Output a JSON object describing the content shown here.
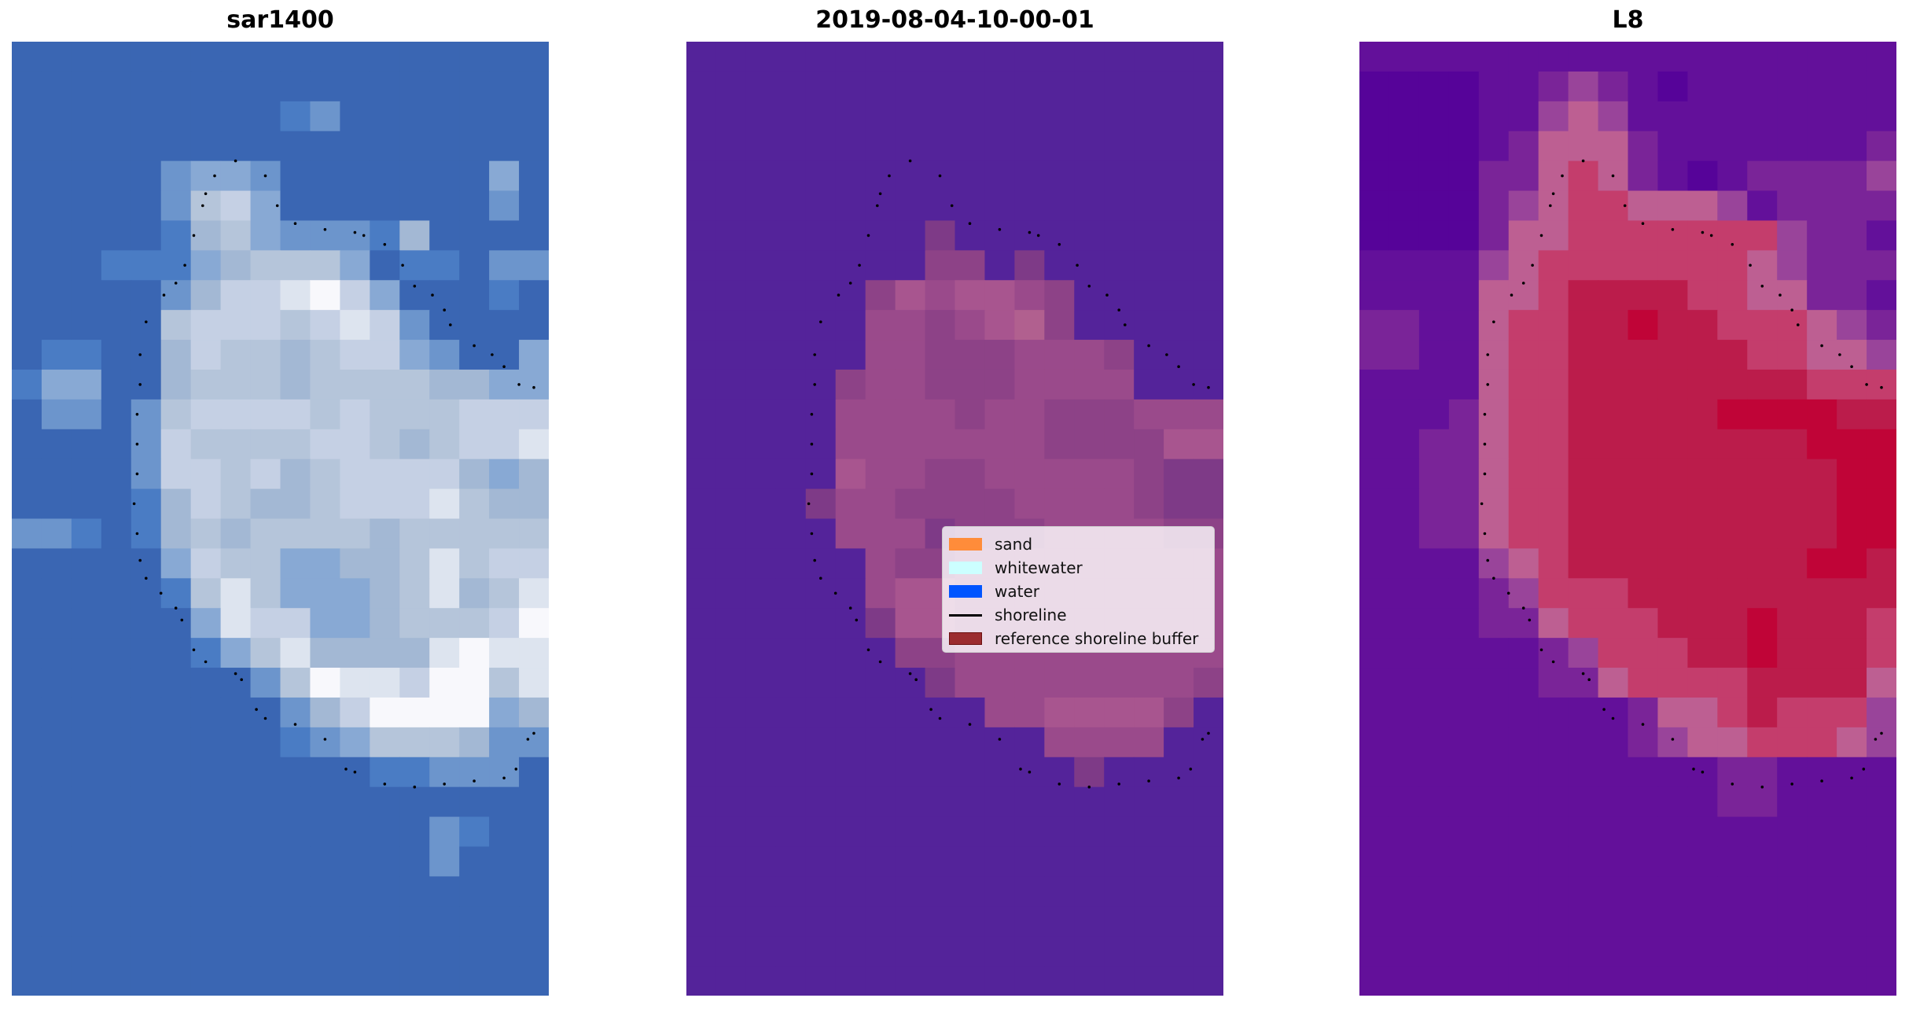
{
  "chart_data": [
    {
      "type": "heatmap",
      "title": "sar1400",
      "grid": false,
      "palette": [
        "#3560ae",
        "#3a66b3",
        "#4a7cc4",
        "#6c95cc",
        "#88a9d4",
        "#a3b8d4",
        "#b5c5da",
        "#c5d0e4",
        "#dde4ef",
        "#f8f8fc"
      ],
      "levels": [
        "111111111111111111",
        "111111111111111111",
        "111111111231111111",
        "111111111111111111",
        "111113443111111141",
        "111113674111111131",
        "111112564333251111",
        "111222456664122133",
        "111113577897411121",
        "111116777678731111",
        "122115766567743114",
        "244115666566665544",
        "133136777767666777",
        "111137666677656778",
        "111137767567777545",
        "111125765567778655",
        "332125656666566666",
        "111114766445568677",
        "111112686444568568",
        "111111487744566679",
        "111111246855558988",
        "111111113698879968",
        "111111111357999945",
        "111111111234666533",
        "111111111111223331",
        "111111111111111111",
        "111111111111113211",
        "111111111111113111",
        "111111111111111111",
        "111111111111111111",
        "111111111111111111",
        "111111111111111111"
      ]
    },
    {
      "type": "heatmap",
      "title": "2019-08-04-10-00-01",
      "grid": false,
      "palette": [
        "#54239a",
        "#7e3a87",
        "#8d4287",
        "#9a4a8b",
        "#a8558f",
        "#b1608f"
      ],
      "levels": [
        "000000000000000000",
        "000000000000000000",
        "000000000000000000",
        "000000000000000000",
        "000000000000000000",
        "000000000000000000",
        "000000001000000000",
        "000000002201000000",
        "000000243443200000",
        "000000332345200000",
        "000000332223332000",
        "000002332223333000",
        "000003333233222333",
        "000003333333222244",
        "000004332233333211",
        "000013322223333211",
        "000003331222333322",
        "000000322333333333",
        "000000344333333333",
        "000000144333333333",
        "000000022333333333",
        "000000001333333332",
        "000000000033444420",
        "000000000000333300",
        "000000000000010000",
        "000000000000000000",
        "000000000000000000",
        "000000000000000000",
        "000000000000000000",
        "000000000000000000",
        "000000000000000000",
        "000000000000000000"
      ]
    },
    {
      "type": "heatmap",
      "title": "L8",
      "grid": false,
      "palette": [
        "#560399",
        "#63109a",
        "#7a2498",
        "#99449a",
        "#bd5f92",
        "#c43d6c",
        "#bb1c4b",
        "#c00437"
      ],
      "levels": [
        "111111111111111111",
        "000011232101111111",
        "000011343111111111",
        "000012444211111112",
        "000022454210122223",
        "000023455444312222",
        "000024455555553221",
        "111134555555543222",
        "111144566665544221",
        "221145566766555432",
        "221145566666655443",
        "111145566666666555",
        "111245566666777766",
        "112245566666666777",
        "112245566666666677",
        "112245566666666677",
        "112245566666666677",
        "111134566666666776",
        "111123555666666666",
        "111122455566676665",
        "111111235556676665",
        "111111224555566664",
        "111111111244565553",
        "111111111234455543",
        "111111111111221111",
        "111111111111221111",
        "111111111111111111",
        "111111111111111111",
        "111111111111111111",
        "111111111111111111",
        "111111111111111111",
        "111111111111111111"
      ]
    }
  ],
  "shoreline": [
    [
      7.5,
      4.0
    ],
    [
      6.8,
      4.5
    ],
    [
      8.5,
      4.5
    ],
    [
      6.5,
      5.1
    ],
    [
      6.4,
      5.5
    ],
    [
      8.9,
      5.5
    ],
    [
      6.1,
      6.5
    ],
    [
      9.5,
      6.1
    ],
    [
      10.5,
      6.3
    ],
    [
      11.5,
      6.4
    ],
    [
      11.8,
      6.5
    ],
    [
      12.5,
      6.8
    ],
    [
      5.8,
      7.5
    ],
    [
      13.1,
      7.5
    ],
    [
      5.5,
      8.1
    ],
    [
      5.1,
      8.5
    ],
    [
      13.5,
      8.2
    ],
    [
      14.1,
      8.5
    ],
    [
      14.5,
      9.0
    ],
    [
      14.7,
      9.5
    ],
    [
      4.5,
      9.4
    ],
    [
      4.3,
      10.5
    ],
    [
      15.5,
      10.2
    ],
    [
      16.1,
      10.5
    ],
    [
      16.5,
      10.9
    ],
    [
      4.3,
      11.5
    ],
    [
      17.0,
      11.5
    ],
    [
      17.5,
      11.6
    ],
    [
      4.2,
      12.5
    ],
    [
      4.2,
      13.5
    ],
    [
      4.2,
      14.5
    ],
    [
      4.1,
      15.5
    ],
    [
      4.2,
      16.5
    ],
    [
      4.3,
      17.4
    ],
    [
      4.5,
      18.0
    ],
    [
      5.0,
      18.5
    ],
    [
      5.5,
      19.0
    ],
    [
      5.7,
      19.4
    ],
    [
      6.1,
      20.4
    ],
    [
      6.5,
      20.8
    ],
    [
      7.5,
      21.2
    ],
    [
      7.7,
      21.4
    ],
    [
      8.2,
      22.4
    ],
    [
      8.5,
      22.7
    ],
    [
      9.5,
      22.9
    ],
    [
      10.5,
      23.4
    ],
    [
      11.2,
      24.4
    ],
    [
      11.5,
      24.5
    ],
    [
      12.5,
      24.9
    ],
    [
      13.5,
      25.0
    ],
    [
      14.5,
      24.9
    ],
    [
      15.5,
      24.8
    ],
    [
      16.5,
      24.7
    ],
    [
      16.9,
      24.4
    ],
    [
      17.3,
      23.4
    ],
    [
      17.5,
      23.2
    ]
  ],
  "legend": {
    "placement": "center-right of middle panel",
    "entries": [
      {
        "label": "sand",
        "color": "#ff8c3a",
        "kind": "patch"
      },
      {
        "label": "whitewater",
        "color": "#ccffff",
        "kind": "patch"
      },
      {
        "label": "water",
        "color": "#0055ff",
        "kind": "patch"
      },
      {
        "label": "shoreline",
        "color": "#000000",
        "kind": "line"
      },
      {
        "label": "reference shoreline buffer",
        "color": "#9b2c2f",
        "kind": "patch"
      }
    ]
  }
}
